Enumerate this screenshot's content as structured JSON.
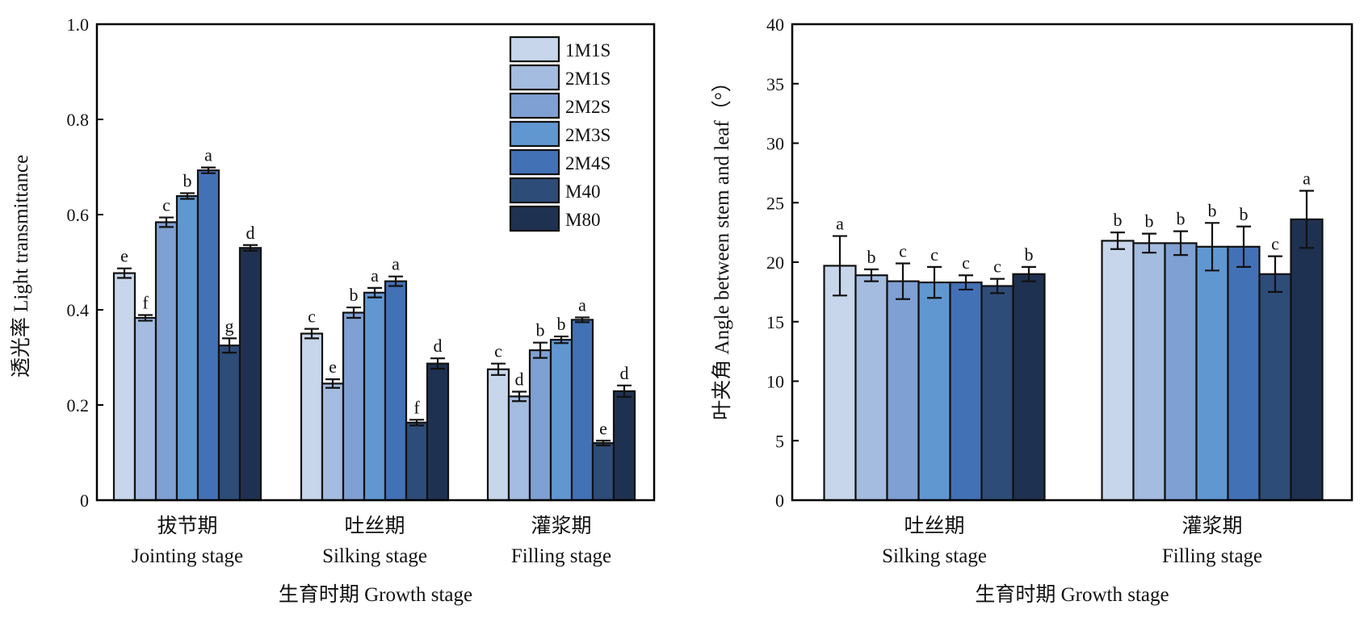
{
  "colors": {
    "1M1S": "#c7d6ea",
    "2M1S": "#a4bcdf",
    "2M2S": "#7fa0d2",
    "2M3S": "#6197d0",
    "2M4S": "#4371b6",
    "M40": "#2e4c78",
    "M80": "#1f3150"
  },
  "chart_data": [
    {
      "type": "bar",
      "ylabel": "透光率 Light transmittance",
      "xlabel": "生育时期 Growth stage",
      "ylim": [
        0,
        1.0
      ],
      "yticks": [
        "0",
        "0.2",
        "0.4",
        "0.6",
        "0.8",
        "1.0"
      ],
      "ytick_values": [
        0,
        0.2,
        0.4,
        0.6,
        0.8,
        1.0
      ],
      "legend": {
        "placement": "top-right",
        "entries": [
          "1M1S",
          "2M1S",
          "2M2S",
          "2M3S",
          "2M4S",
          "M40",
          "M80"
        ]
      },
      "categories": [
        {
          "cn": "拔节期",
          "en": "Jointing stage"
        },
        {
          "cn": "吐丝期",
          "en": "Silking stage"
        },
        {
          "cn": "灌浆期",
          "en": "Filling stage"
        }
      ],
      "series": [
        {
          "name": "1M1S",
          "values": [
            0.477,
            0.35,
            0.275
          ],
          "errors": [
            0.01,
            0.01,
            0.012
          ],
          "letters": [
            "e",
            "c",
            "c"
          ]
        },
        {
          "name": "2M1S",
          "values": [
            0.383,
            0.245,
            0.218
          ],
          "errors": [
            0.006,
            0.009,
            0.01
          ],
          "letters": [
            "f",
            "e",
            "d"
          ]
        },
        {
          "name": "2M2S",
          "values": [
            0.584,
            0.394,
            0.315
          ],
          "errors": [
            0.01,
            0.011,
            0.016
          ],
          "letters": [
            "c",
            "b",
            "b"
          ]
        },
        {
          "name": "2M3S",
          "values": [
            0.639,
            0.436,
            0.337
          ],
          "errors": [
            0.006,
            0.01,
            0.007
          ],
          "letters": [
            "b",
            "a",
            "b"
          ]
        },
        {
          "name": "2M4S",
          "values": [
            0.693,
            0.46,
            0.379
          ],
          "errors": [
            0.006,
            0.01,
            0.005
          ],
          "letters": [
            "a",
            "a",
            "a"
          ]
        },
        {
          "name": "M40",
          "values": [
            0.325,
            0.163,
            0.12
          ],
          "errors": [
            0.015,
            0.006,
            0.005
          ],
          "letters": [
            "g",
            "f",
            "e"
          ]
        },
        {
          "name": "M80",
          "values": [
            0.53,
            0.287,
            0.229
          ],
          "errors": [
            0.006,
            0.011,
            0.012
          ],
          "letters": [
            "d",
            "d",
            "d"
          ]
        }
      ]
    },
    {
      "type": "bar",
      "ylabel": "叶夹角 Angle between stem and leaf（°）",
      "xlabel": "生育时期 Growth stage",
      "ylim": [
        0,
        40
      ],
      "yticks": [
        "0",
        "5",
        "10",
        "15",
        "20",
        "25",
        "30",
        "35",
        "40"
      ],
      "ytick_values": [
        0,
        5,
        10,
        15,
        20,
        25,
        30,
        35,
        40
      ],
      "categories": [
        {
          "cn": "吐丝期",
          "en": "Silking stage"
        },
        {
          "cn": "灌浆期",
          "en": "Filling stage"
        }
      ],
      "series": [
        {
          "name": "1M1S",
          "values": [
            19.7,
            21.8
          ],
          "errors": [
            2.5,
            0.7
          ],
          "letters": [
            "a",
            "b"
          ]
        },
        {
          "name": "2M1S",
          "values": [
            18.9,
            21.6
          ],
          "errors": [
            0.5,
            0.8
          ],
          "letters": [
            "b",
            "b"
          ]
        },
        {
          "name": "2M2S",
          "values": [
            18.4,
            21.6
          ],
          "errors": [
            1.5,
            1.0
          ],
          "letters": [
            "c",
            "b"
          ]
        },
        {
          "name": "2M3S",
          "values": [
            18.3,
            21.3
          ],
          "errors": [
            1.3,
            2.0
          ],
          "letters": [
            "c",
            "b"
          ]
        },
        {
          "name": "2M4S",
          "values": [
            18.3,
            21.3
          ],
          "errors": [
            0.6,
            1.7
          ],
          "letters": [
            "c",
            "b"
          ]
        },
        {
          "name": "M40",
          "values": [
            18.0,
            19.0
          ],
          "errors": [
            0.6,
            1.5
          ],
          "letters": [
            "c",
            "c"
          ]
        },
        {
          "name": "M80",
          "values": [
            19.0,
            23.6
          ],
          "errors": [
            0.6,
            2.4
          ],
          "letters": [
            "b",
            "a"
          ]
        }
      ]
    }
  ]
}
